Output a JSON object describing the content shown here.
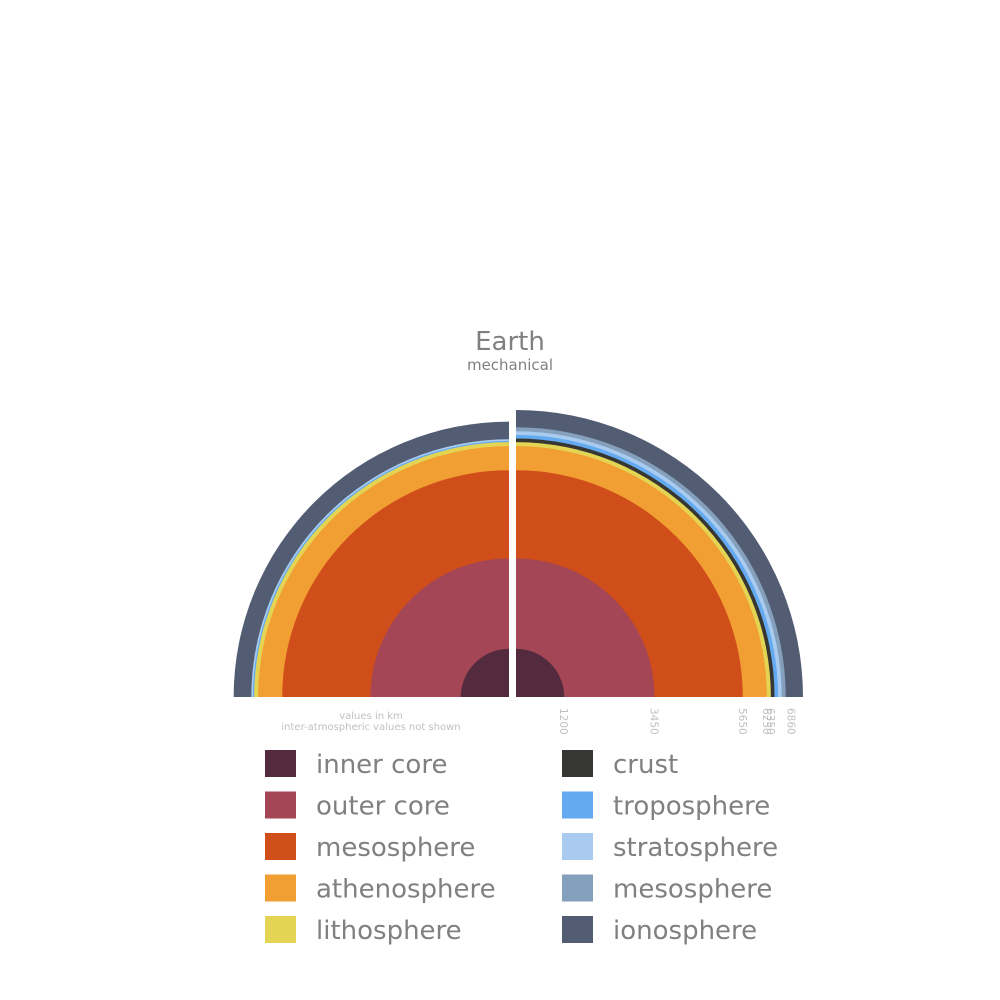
{
  "header": {
    "title": "Earth",
    "subtitle": "mechanical"
  },
  "notes": {
    "line1": "values in km",
    "line2": "inter-atmospheric values not shown"
  },
  "chart_data": {
    "type": "layered-half-disc",
    "title": "Earth",
    "subtitle": "mechanical",
    "units": "km",
    "left_layers": [
      {
        "name": "inner core",
        "outer_radius_km": 1200,
        "color": "#542a3e"
      },
      {
        "name": "outer core",
        "outer_radius_km": 3450,
        "color": "#a44656"
      },
      {
        "name": "mesosphere",
        "outer_radius_km": 5650,
        "color": "#d04e1a"
      },
      {
        "name": "athenosphere",
        "outer_radius_km": 6250,
        "color": "#f19e32"
      },
      {
        "name": "lithosphere",
        "outer_radius_km": 6350,
        "color": "#e4d454"
      },
      {
        "name": "troposphere",
        "outer_radius_km": 6380,
        "color": "#63aaf0"
      },
      {
        "name": "stratosphere",
        "outer_radius_km": 6420,
        "color": "#aacbf0"
      },
      {
        "name": "ionosphere",
        "outer_radius_km": 6860,
        "color": "#525c73"
      }
    ],
    "right_layers": [
      {
        "name": "inner core",
        "outer_radius_km": 1200,
        "color": "#542a3e"
      },
      {
        "name": "outer core",
        "outer_radius_km": 3450,
        "color": "#a44656"
      },
      {
        "name": "mesosphere",
        "outer_radius_km": 5650,
        "color": "#d04e1a"
      },
      {
        "name": "athenosphere",
        "outer_radius_km": 6250,
        "color": "#f19e32"
      },
      {
        "name": "lithosphere",
        "outer_radius_km": 6350,
        "color": "#e4d454"
      },
      {
        "name": "crust",
        "outer_radius_km": 6440,
        "color": "#363632"
      },
      {
        "name": "troposphere",
        "outer_radius_km": 6530,
        "color": "#63aaf0"
      },
      {
        "name": "stratosphere",
        "outer_radius_km": 6620,
        "color": "#aacbf0"
      },
      {
        "name": "mesosphere",
        "outer_radius_km": 6720,
        "color": "#85a0bc"
      },
      {
        "name": "ionosphere",
        "outer_radius_km": 7150,
        "color": "#525c73"
      }
    ],
    "tick_labels": [
      "1200",
      "3450",
      "5650",
      "6250",
      "6350",
      "6860"
    ],
    "tick_values_km": [
      1200,
      3450,
      5650,
      6250,
      6350,
      6860
    ],
    "legend": [
      {
        "label": "inner core",
        "color": "#542a3e"
      },
      {
        "label": "outer core",
        "color": "#a44656"
      },
      {
        "label": "mesosphere",
        "color": "#d04e1a"
      },
      {
        "label": "athenosphere",
        "color": "#f19e32"
      },
      {
        "label": "lithosphere",
        "color": "#e4d454"
      },
      {
        "label": "crust",
        "color": "#363632"
      },
      {
        "label": "troposphere",
        "color": "#63aaf0"
      },
      {
        "label": "stratosphere",
        "color": "#aacbf0"
      },
      {
        "label": "mesosphere",
        "color": "#85a0bc"
      },
      {
        "label": "ionosphere",
        "color": "#525c73"
      }
    ],
    "legend_placement": "bottom"
  }
}
